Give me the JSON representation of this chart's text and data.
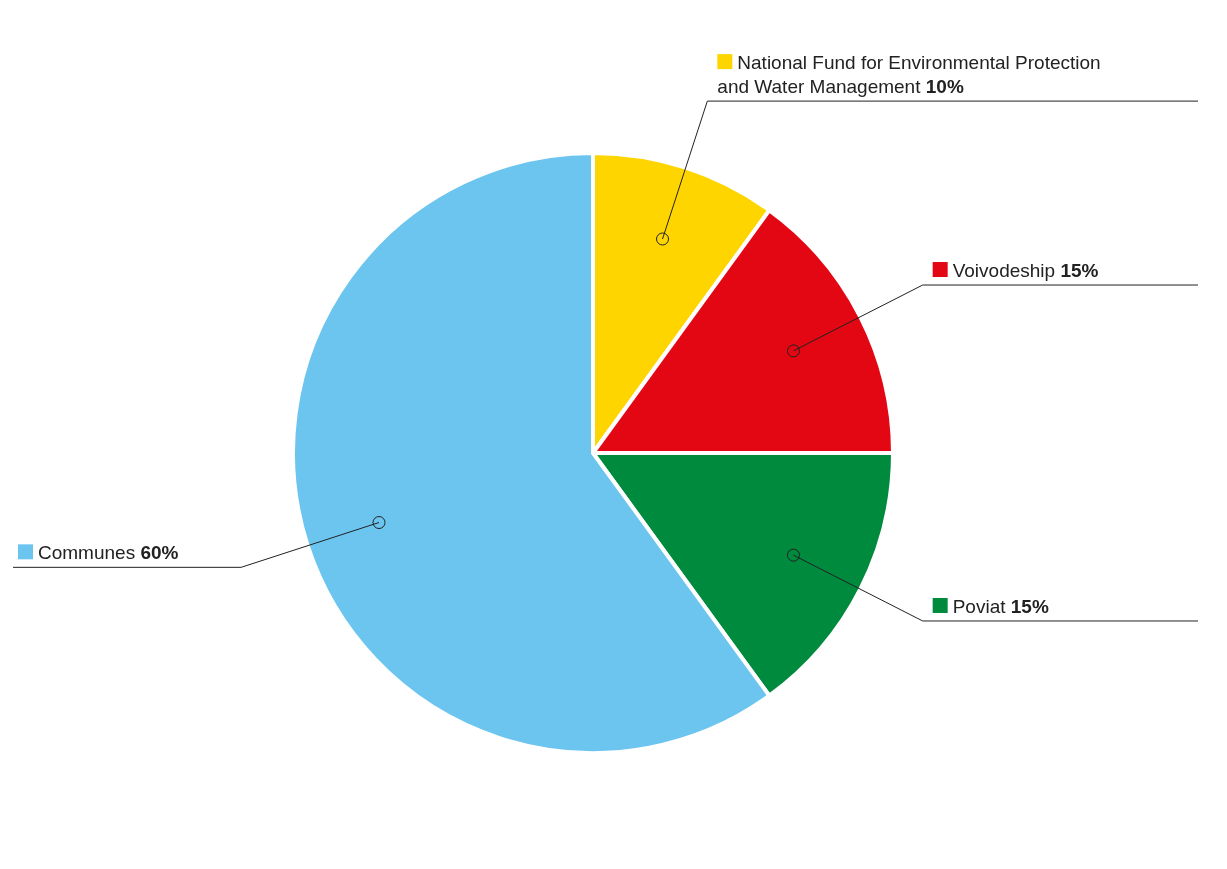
{
  "chart_data": {
    "type": "pie",
    "categories": [
      "National Fund for Environmental Protection and Water Management",
      "Voivodeship",
      "Poviat",
      "Communes"
    ],
    "values": [
      10,
      15,
      15,
      60
    ],
    "value_labels": [
      "10%",
      "15%",
      "15%",
      "60%"
    ],
    "colors": [
      "#ffd500",
      "#e30613",
      "#008a3e",
      "#6cc5ef"
    ],
    "legend": "top left"
  }
}
